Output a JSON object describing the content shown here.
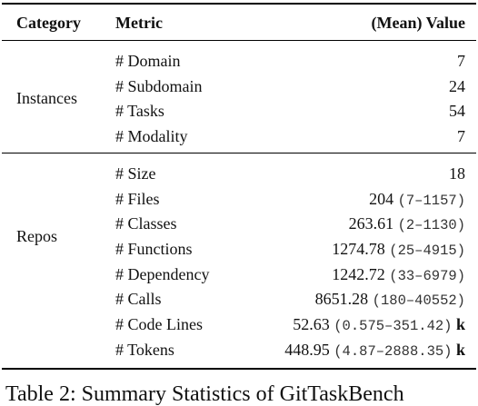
{
  "table": {
    "headers": {
      "category": "Category",
      "metric": "Metric",
      "value": "(Mean) Value"
    },
    "groups": [
      {
        "category": "Instances",
        "rows": [
          {
            "metric": "# Domain",
            "value": "7",
            "range": "",
            "unit": ""
          },
          {
            "metric": "# Subdomain",
            "value": "24",
            "range": "",
            "unit": ""
          },
          {
            "metric": "# Tasks",
            "value": "54",
            "range": "",
            "unit": ""
          },
          {
            "metric": "# Modality",
            "value": "7",
            "range": "",
            "unit": ""
          }
        ]
      },
      {
        "category": "Repos",
        "rows": [
          {
            "metric": "# Size",
            "value": "18",
            "range": "",
            "unit": ""
          },
          {
            "metric": "# Files",
            "value": "204",
            "range": "(7–1157)",
            "unit": ""
          },
          {
            "metric": "# Classes",
            "value": "263.61",
            "range": "(2–1130)",
            "unit": ""
          },
          {
            "metric": "# Functions",
            "value": "1274.78",
            "range": "(25–4915)",
            "unit": ""
          },
          {
            "metric": "# Dependency",
            "value": "1242.72",
            "range": "(33–6979)",
            "unit": ""
          },
          {
            "metric": "# Calls",
            "value": "8651.28",
            "range": "(180–40552)",
            "unit": ""
          },
          {
            "metric": "# Code Lines",
            "value": "52.63",
            "range": "(0.575–351.42)",
            "unit": "k"
          },
          {
            "metric": "# Tokens",
            "value": "448.95",
            "range": "(4.87–2888.35)",
            "unit": "k"
          }
        ]
      }
    ]
  },
  "caption": "Table 2: Summary Statistics of GitTaskBench"
}
